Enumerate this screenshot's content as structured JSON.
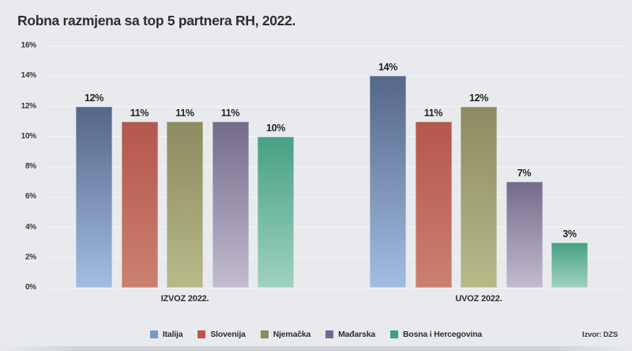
{
  "title": "Robna razmjena sa top 5 partnera RH, 2022.",
  "source_label": "Izvor: DZS",
  "colors": {
    "background": "#e8eaed",
    "gridline": "#f2f4f6",
    "text": "#2c2e34"
  },
  "chart_data": {
    "type": "bar",
    "title": "Robna razmjena sa top 5 partnera RH, 2022.",
    "groups": [
      "IZVOZ 2022.",
      "UVOZ 2022."
    ],
    "series": [
      {
        "name": "Italija",
        "values": [
          12,
          14
        ],
        "color_top": "#546689",
        "color_bottom": "#a3bde2",
        "swatch": "#7b97c4"
      },
      {
        "name": "Slovenija",
        "values": [
          11,
          11
        ],
        "color_top": "#b5564e",
        "color_bottom": "#cb8071",
        "swatch": "#bd544b"
      },
      {
        "name": "Njemačka",
        "values": [
          11,
          12
        ],
        "color_top": "#8d8a61",
        "color_bottom": "#b6ba89",
        "swatch": "#8d8a61"
      },
      {
        "name": "Mađarska",
        "values": [
          11,
          7
        ],
        "color_top": "#746b8b",
        "color_bottom": "#c3bbd0",
        "swatch": "#77688f"
      },
      {
        "name": "Bosna i Hercegovina",
        "values": [
          10,
          3
        ],
        "color_top": "#46a183",
        "color_bottom": "#a0d2c0",
        "swatch": "#3fa183"
      }
    ],
    "bar_labels": {
      "IZVOZ 2022.": [
        "12%",
        "11%",
        "11%",
        "11%",
        "10%"
      ],
      "UVOZ 2022.": [
        "14%",
        "11%",
        "12%",
        "7%",
        "3%"
      ]
    },
    "value_suffix": "%",
    "ylim": [
      0,
      16
    ],
    "y_tick_step": 2,
    "y_tick_labels": [
      "0%",
      "2%",
      "4%",
      "6%",
      "8%",
      "10%",
      "12%",
      "14%",
      "16%"
    ],
    "xlabel": "",
    "ylabel": "",
    "grid": true,
    "legend_position": "bottom"
  }
}
